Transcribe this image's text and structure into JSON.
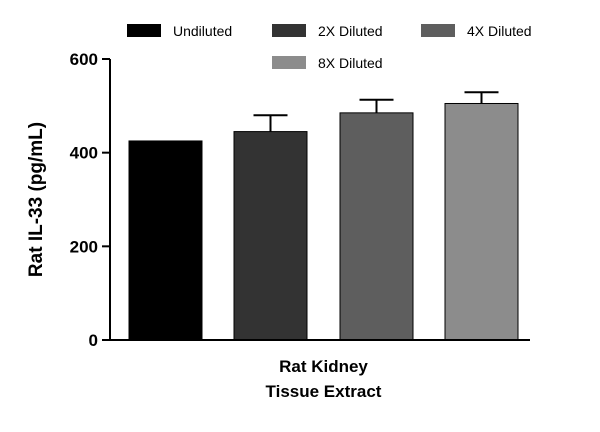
{
  "chart_data": {
    "type": "bar",
    "title": "",
    "xlabel_lines": [
      "Rat Kidney",
      "Tissue Extract"
    ],
    "ylabel": "Rat IL-33 (pg/mL)",
    "ylim": [
      0,
      600
    ],
    "yticks": [
      0,
      200,
      400,
      600
    ],
    "category": "Rat Kidney Tissue Extract",
    "series": [
      {
        "name": "Undiluted",
        "value": 425,
        "error": 0,
        "color": "#000000"
      },
      {
        "name": "2X Diluted",
        "value": 445,
        "error": 35,
        "color": "#333333"
      },
      {
        "name": "4X Diluted",
        "value": 485,
        "error": 28,
        "color": "#5e5e5e"
      },
      {
        "name": "8X Diluted",
        "value": 505,
        "error": 24,
        "color": "#8c8c8c"
      }
    ],
    "legend_position": "top"
  }
}
